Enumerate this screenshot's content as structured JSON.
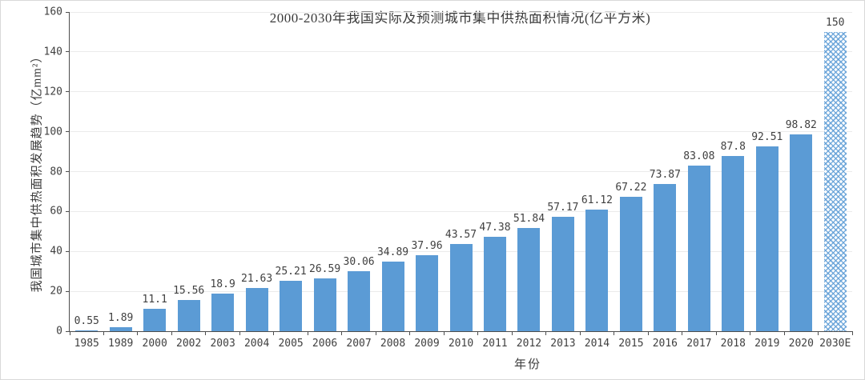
{
  "chart_data": {
    "type": "bar",
    "title": "2000-2030年我国实际及预测城市集中供热面积情况(亿平方米)",
    "xlabel": "年份",
    "ylabel": "我国城市集中供热面积发展趋势（亿mm²）",
    "ylim": [
      0,
      160
    ],
    "ytick_step": 20,
    "grid": true,
    "legend_position": "none",
    "categories": [
      "1985",
      "1989",
      "2000",
      "2002",
      "2003",
      "2004",
      "2005",
      "2006",
      "2007",
      "2008",
      "2009",
      "2010",
      "2011",
      "2012",
      "2013",
      "2014",
      "2015",
      "2016",
      "2017",
      "2018",
      "2019",
      "2020",
      "2030E"
    ],
    "values": [
      0.55,
      1.89,
      11.1,
      15.56,
      18.9,
      21.63,
      25.21,
      26.59,
      30.06,
      34.89,
      37.96,
      43.57,
      47.38,
      51.84,
      57.17,
      61.12,
      67.22,
      73.87,
      83.08,
      87.8,
      92.51,
      98.82,
      150
    ],
    "value_labels": [
      "0.55",
      "1.89",
      "11.1",
      "15.56",
      "18.9",
      "21.63",
      "25.21",
      "26.59",
      "30.06",
      "34.89",
      "37.96",
      "43.57",
      "47.38",
      "51.84",
      "57.17",
      "61.12",
      "67.22",
      "73.87",
      "83.08",
      "87.8",
      "92.51",
      "98.82",
      "150"
    ],
    "bar_color": "#5b9bd5",
    "forecast_index": 22,
    "forecast_style": "hatched",
    "gridline_color": "#ebebeb",
    "axis_color": "#4d4d4d"
  }
}
